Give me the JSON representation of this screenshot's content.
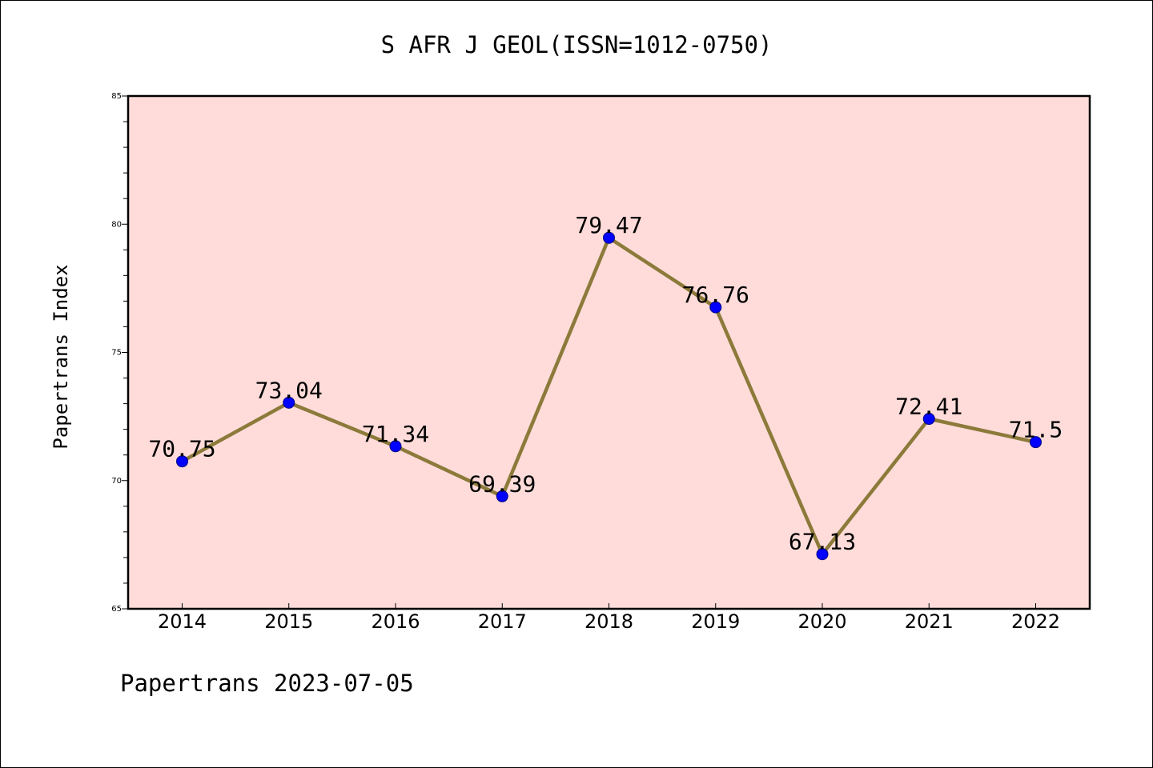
{
  "chart_data": {
    "type": "line",
    "title": "S AFR J GEOL(ISSN=1012-0750)",
    "ylabel": "Papertrans Index",
    "xlabel": "",
    "footer": "Papertrans 2023-07-05",
    "categories": [
      "2014",
      "2015",
      "2016",
      "2017",
      "2018",
      "2019",
      "2020",
      "2021",
      "2022"
    ],
    "values": [
      70.75,
      73.04,
      71.34,
      69.39,
      79.47,
      76.76,
      67.13,
      72.41,
      71.5
    ],
    "value_labels": [
      "70.75",
      "73.04",
      "71.34",
      "69.39",
      "79.47",
      "76.76",
      "67.13",
      "72.41",
      "71.5"
    ],
    "ylim": [
      65,
      85
    ],
    "yticks": [
      65,
      70,
      75,
      80,
      85
    ],
    "ytick_labels": [
      "65",
      "70",
      "75",
      "80",
      "85"
    ],
    "grid": false,
    "colors": {
      "plot_background": "#FFDCDA",
      "line": "#8C7A3A",
      "marker_fill": "#0000FF",
      "marker_edge": "#000080"
    }
  }
}
